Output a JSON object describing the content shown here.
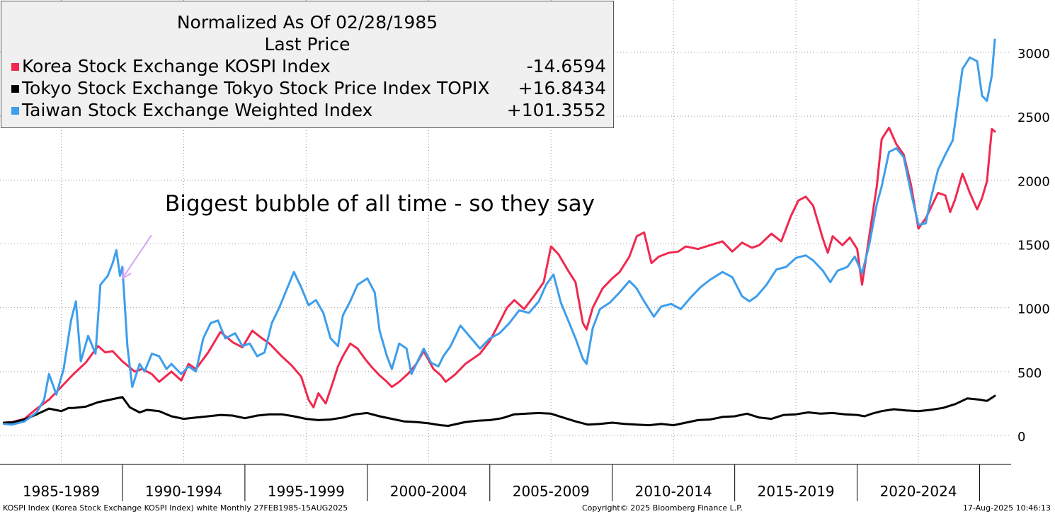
{
  "chart_data": {
    "type": "line",
    "title": "Normalized As Of 02/28/1985",
    "subtitle": "Last Price",
    "x_range": [
      1985.16,
      2025.62
    ],
    "ylim": [
      -200,
      3200
    ],
    "y_ticks": [
      0,
      500,
      1000,
      1500,
      2000,
      2500,
      3000
    ],
    "x_tick_labels": [
      "1985-1989",
      "1990-1994",
      "1995-1999",
      "2000-2004",
      "2005-2009",
      "2010-2014",
      "2015-2019",
      "2020-2024"
    ],
    "x_label_centers": [
      1987.5,
      1992.5,
      1997.5,
      2002.5,
      2007.5,
      2012.5,
      2017.5,
      2022.5
    ],
    "x_separators": [
      1990,
      1995,
      2000,
      2005,
      2010,
      2015,
      2020,
      2025
    ],
    "grid": true,
    "annotation": {
      "text": "Biggest bubble of all time - so they say",
      "arrow_target": [
        1990.0,
        1230
      ],
      "arrow_color": "#d9a3f2"
    },
    "series": [
      {
        "name": "Korea Stock Exchange KOSPI Index",
        "legend_value": "-14.6594",
        "color": "#f0294f",
        "x": [
          1985.16,
          1985.5,
          1986.0,
          1986.5,
          1987.0,
          1987.5,
          1988.0,
          1988.5,
          1989.0,
          1989.3,
          1989.6,
          1990.0,
          1990.5,
          1990.8,
          1991.2,
          1991.5,
          1992.0,
          1992.4,
          1992.7,
          1993.0,
          1993.5,
          1994.0,
          1994.5,
          1994.9,
          1995.3,
          1995.7,
          1996.0,
          1996.5,
          1996.9,
          1997.3,
          1997.6,
          1997.8,
          1998.0,
          1998.3,
          1998.6,
          1998.8,
          1999.0,
          1999.3,
          1999.6,
          1999.9,
          2000.2,
          2000.5,
          2000.8,
          2001.0,
          2001.3,
          2001.7,
          2002.0,
          2002.3,
          2002.7,
          2003.0,
          2003.2,
          2003.6,
          2004.0,
          2004.3,
          2004.6,
          2005.0,
          2005.3,
          2005.7,
          2006.0,
          2006.4,
          2006.8,
          2007.2,
          2007.5,
          2007.8,
          2008.2,
          2008.5,
          2008.8,
          2008.95,
          2009.2,
          2009.6,
          2010.0,
          2010.3,
          2010.7,
          2011.0,
          2011.3,
          2011.6,
          2011.9,
          2012.3,
          2012.7,
          2013.0,
          2013.5,
          2014.0,
          2014.5,
          2014.9,
          2015.3,
          2015.7,
          2016.0,
          2016.5,
          2016.9,
          2017.3,
          2017.6,
          2017.9,
          2018.2,
          2018.6,
          2018.8,
          2019.0,
          2019.4,
          2019.7,
          2020.0,
          2020.2,
          2020.5,
          2020.8,
          2021.0,
          2021.3,
          2021.6,
          2021.9,
          2022.2,
          2022.5,
          2022.8,
          2023.0,
          2023.3,
          2023.6,
          2023.8,
          2024.0,
          2024.3,
          2024.6,
          2024.9,
          2025.1,
          2025.3,
          2025.5,
          2025.62
        ],
        "values": [
          100,
          105,
          130,
          210,
          280,
          380,
          480,
          570,
          700,
          650,
          660,
          580,
          500,
          520,
          480,
          420,
          500,
          430,
          560,
          520,
          650,
          810,
          730,
          690,
          820,
          760,
          720,
          620,
          550,
          460,
          280,
          220,
          330,
          250,
          420,
          540,
          620,
          720,
          680,
          600,
          530,
          470,
          420,
          380,
          420,
          490,
          560,
          660,
          520,
          470,
          420,
          480,
          560,
          600,
          640,
          740,
          850,
          1000,
          1060,
          990,
          1090,
          1200,
          1480,
          1420,
          1290,
          1200,
          880,
          830,
          1000,
          1150,
          1230,
          1280,
          1400,
          1560,
          1590,
          1350,
          1400,
          1430,
          1440,
          1480,
          1460,
          1490,
          1520,
          1440,
          1510,
          1470,
          1490,
          1580,
          1520,
          1720,
          1840,
          1870,
          1800,
          1540,
          1430,
          1560,
          1490,
          1550,
          1460,
          1180,
          1570,
          1950,
          2320,
          2410,
          2280,
          2200,
          1960,
          1620,
          1700,
          1780,
          1900,
          1880,
          1750,
          1850,
          2050,
          1900,
          1770,
          1860,
          1990,
          2400,
          2380
        ]
      },
      {
        "name": "Tokyo Stock Exchange Tokyo Stock Price Index TOPIX",
        "legend_value": "+16.8434",
        "color": "#000000",
        "x": [
          1985.16,
          1985.5,
          1986.0,
          1986.5,
          1987.0,
          1987.5,
          1987.8,
          1988.0,
          1988.5,
          1989.0,
          1989.5,
          1990.0,
          1990.3,
          1990.7,
          1991.0,
          1991.5,
          1992.0,
          1992.5,
          1993.0,
          1993.5,
          1994.0,
          1994.5,
          1995.0,
          1995.5,
          1996.0,
          1996.5,
          1997.0,
          1997.5,
          1998.0,
          1998.5,
          1999.0,
          1999.5,
          2000.0,
          2000.5,
          2001.0,
          2001.5,
          2002.0,
          2002.5,
          2003.0,
          2003.3,
          2004.0,
          2004.5,
          2005.0,
          2005.5,
          2006.0,
          2006.5,
          2007.0,
          2007.5,
          2008.0,
          2008.5,
          2009.0,
          2009.5,
          2010.0,
          2010.5,
          2011.0,
          2011.5,
          2012.0,
          2012.5,
          2013.0,
          2013.5,
          2014.0,
          2014.5,
          2015.0,
          2015.5,
          2016.0,
          2016.5,
          2017.0,
          2017.5,
          2018.0,
          2018.5,
          2019.0,
          2019.5,
          2020.0,
          2020.3,
          2020.6,
          2021.0,
          2021.5,
          2022.0,
          2022.5,
          2023.0,
          2023.5,
          2024.0,
          2024.5,
          2025.0,
          2025.3,
          2025.62
        ],
        "values": [
          100,
          102,
          125,
          165,
          210,
          190,
          215,
          215,
          225,
          260,
          280,
          300,
          220,
          180,
          200,
          190,
          150,
          130,
          140,
          150,
          160,
          155,
          135,
          155,
          165,
          165,
          150,
          130,
          120,
          125,
          140,
          165,
          175,
          150,
          130,
          110,
          105,
          95,
          80,
          75,
          105,
          115,
          120,
          135,
          165,
          170,
          175,
          170,
          140,
          110,
          85,
          90,
          100,
          90,
          85,
          80,
          90,
          80,
          100,
          120,
          125,
          145,
          150,
          170,
          140,
          130,
          160,
          165,
          180,
          170,
          175,
          165,
          160,
          150,
          170,
          190,
          205,
          195,
          190,
          200,
          215,
          245,
          290,
          280,
          270,
          310
        ]
      },
      {
        "name": "Taiwan Stock Exchange Weighted Index",
        "legend_value": "+101.3552",
        "color": "#3d9eec",
        "x": [
          1985.16,
          1985.5,
          1986.0,
          1986.5,
          1986.8,
          1987.0,
          1987.3,
          1987.6,
          1987.9,
          1988.1,
          1988.3,
          1988.6,
          1988.9,
          1989.1,
          1989.4,
          1989.6,
          1989.75,
          1989.9,
          1990.0,
          1990.2,
          1990.4,
          1990.7,
          1990.9,
          1991.2,
          1991.5,
          1991.8,
          1992.0,
          1992.4,
          1992.7,
          1993.0,
          1993.3,
          1993.6,
          1993.9,
          1994.2,
          1994.6,
          1994.9,
          1995.2,
          1995.5,
          1995.8,
          1996.1,
          1996.4,
          1996.7,
          1997.0,
          1997.3,
          1997.6,
          1997.9,
          1998.2,
          1998.5,
          1998.8,
          1999.0,
          1999.3,
          1999.6,
          2000.0,
          2000.3,
          2000.5,
          2000.8,
          2001.0,
          2001.3,
          2001.6,
          2001.8,
          2002.0,
          2002.3,
          2002.6,
          2002.9,
          2003.1,
          2003.4,
          2003.8,
          2004.2,
          2004.6,
          2005.0,
          2005.4,
          2005.8,
          2006.2,
          2006.6,
          2007.0,
          2007.3,
          2007.6,
          2007.9,
          2008.2,
          2008.5,
          2008.8,
          2008.95,
          2009.2,
          2009.5,
          2009.9,
          2010.3,
          2010.7,
          2011.0,
          2011.3,
          2011.7,
          2012.0,
          2012.4,
          2012.8,
          2013.2,
          2013.6,
          2014.0,
          2014.5,
          2014.9,
          2015.3,
          2015.6,
          2015.9,
          2016.3,
          2016.7,
          2017.1,
          2017.5,
          2017.9,
          2018.2,
          2018.6,
          2018.9,
          2019.2,
          2019.6,
          2019.9,
          2020.2,
          2020.5,
          2020.8,
          2021.0,
          2021.3,
          2021.6,
          2021.9,
          2022.2,
          2022.5,
          2022.8,
          2023.0,
          2023.3,
          2023.6,
          2023.9,
          2024.1,
          2024.3,
          2024.6,
          2024.9,
          2025.1,
          2025.3,
          2025.5,
          2025.62
        ],
        "values": [
          90,
          85,
          110,
          180,
          280,
          480,
          320,
          520,
          900,
          1050,
          580,
          780,
          640,
          1180,
          1250,
          1350,
          1450,
          1250,
          1320,
          700,
          380,
          560,
          500,
          640,
          620,
          520,
          560,
          480,
          540,
          500,
          760,
          880,
          900,
          760,
          800,
          700,
          720,
          620,
          650,
          880,
          1000,
          1140,
          1280,
          1160,
          1020,
          1060,
          960,
          760,
          700,
          940,
          1050,
          1180,
          1230,
          1120,
          820,
          620,
          520,
          720,
          680,
          480,
          560,
          680,
          570,
          540,
          620,
          700,
          860,
          770,
          680,
          760,
          800,
          880,
          980,
          960,
          1050,
          1180,
          1260,
          1040,
          900,
          760,
          600,
          560,
          840,
          990,
          1040,
          1120,
          1210,
          1150,
          1050,
          930,
          1010,
          1030,
          990,
          1080,
          1160,
          1220,
          1280,
          1240,
          1090,
          1050,
          1090,
          1180,
          1300,
          1320,
          1390,
          1410,
          1370,
          1290,
          1200,
          1290,
          1320,
          1400,
          1270,
          1500,
          1810,
          1950,
          2220,
          2250,
          2180,
          1900,
          1650,
          1660,
          1850,
          2080,
          2200,
          2310,
          2590,
          2870,
          2960,
          2930,
          2660,
          2620,
          2820,
          3100
        ]
      }
    ]
  },
  "legend": {
    "title": "Normalized As Of 02/28/1985",
    "subtitle": "Last Price",
    "items": [
      {
        "label": "Korea Stock Exchange KOSPI Index",
        "value": "-14.6594",
        "color": "#f0294f"
      },
      {
        "label": "Tokyo Stock Exchange Tokyo Stock Price Index TOPIX",
        "value": "+16.8434",
        "color": "#000000"
      },
      {
        "label": "Taiwan Stock Exchange Weighted Index",
        "value": "+101.3552",
        "color": "#3d9eec"
      }
    ]
  },
  "annotation_text": "Biggest bubble of all time - so they say",
  "footer": {
    "left": "KOSPI Index (Korea Stock Exchange KOSPI Index) white  Monthly 27FEB1985-15AUG2025",
    "center": "Copyright© 2025 Bloomberg Finance L.P.",
    "right": "17-Aug-2025 10:46:13"
  }
}
